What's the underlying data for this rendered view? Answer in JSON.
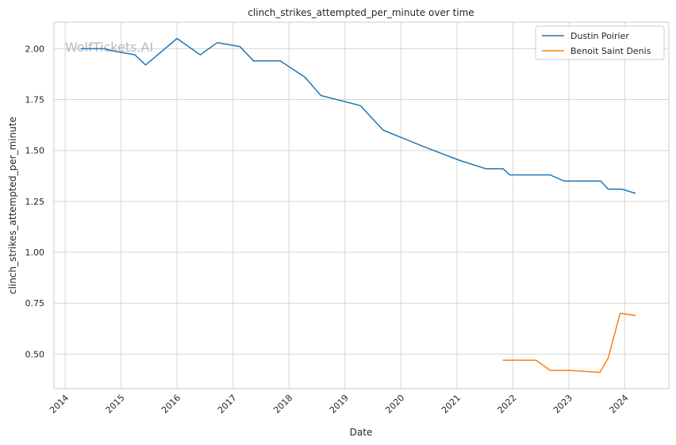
{
  "chart_data": {
    "type": "line",
    "title": "clinch_strikes_attempted_per_minute over time",
    "xlabel": "Date",
    "ylabel": "clinch_strikes_attempted_per_minute",
    "watermark": "WolfTickets.AI",
    "xlim": [
      "2013-10-20",
      "2024-10-15"
    ],
    "ylim": [
      0.33,
      2.13
    ],
    "x_ticks": [
      "2014",
      "2015",
      "2016",
      "2017",
      "2018",
      "2019",
      "2020",
      "2021",
      "2022",
      "2023",
      "2024"
    ],
    "y_ticks": [
      "0.50",
      "0.75",
      "1.00",
      "1.25",
      "1.50",
      "1.75",
      "2.00"
    ],
    "grid": true,
    "legend_position": "top-right",
    "series": [
      {
        "name": "Dustin Poirier",
        "color": "#1f77b4",
        "points": [
          [
            "2014-04-15",
            2.0
          ],
          [
            "2014-09-15",
            2.0
          ],
          [
            "2014-11-01",
            1.99
          ],
          [
            "2015-04-01",
            1.97
          ],
          [
            "2015-06-10",
            1.92
          ],
          [
            "2016-01-01",
            2.05
          ],
          [
            "2016-06-01",
            1.97
          ],
          [
            "2016-09-20",
            2.03
          ],
          [
            "2017-02-15",
            2.01
          ],
          [
            "2017-05-15",
            1.94
          ],
          [
            "2017-11-05",
            1.94
          ],
          [
            "2018-04-15",
            1.86
          ],
          [
            "2018-07-28",
            1.77
          ],
          [
            "2019-04-13",
            1.72
          ],
          [
            "2019-09-07",
            1.6
          ],
          [
            "2020-06-27",
            1.51
          ],
          [
            "2021-01-23",
            1.45
          ],
          [
            "2021-07-10",
            1.41
          ],
          [
            "2021-10-30",
            1.41
          ],
          [
            "2021-12-11",
            1.38
          ],
          [
            "2022-09-01",
            1.38
          ],
          [
            "2022-12-01",
            1.35
          ],
          [
            "2023-07-29",
            1.35
          ],
          [
            "2023-09-15",
            1.31
          ],
          [
            "2023-12-15",
            1.31
          ],
          [
            "2024-03-09",
            1.29
          ]
        ]
      },
      {
        "name": "Benoit Saint Denis",
        "color": "#ff7f0e",
        "points": [
          [
            "2021-10-30",
            0.47
          ],
          [
            "2022-06-01",
            0.47
          ],
          [
            "2022-09-01",
            0.42
          ],
          [
            "2023-01-01",
            0.42
          ],
          [
            "2023-07-22",
            0.41
          ],
          [
            "2023-09-15",
            0.48
          ],
          [
            "2023-12-02",
            0.7
          ],
          [
            "2024-03-09",
            0.69
          ]
        ]
      }
    ]
  }
}
